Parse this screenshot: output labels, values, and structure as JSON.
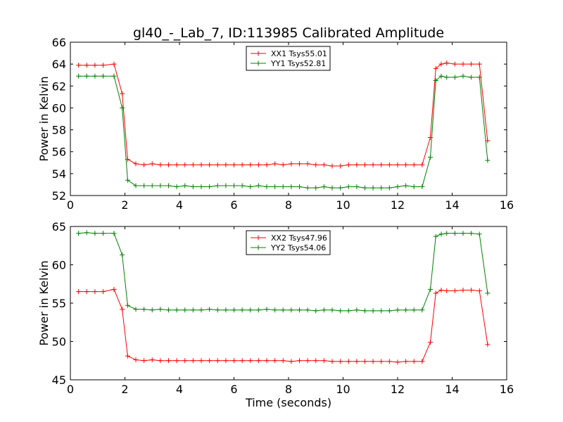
{
  "title": "gl40_-_Lab_7, ID:113985 Calibrated Amplitude",
  "colors": {
    "red": "#ff0000",
    "green": "#008000"
  },
  "chart_data": [
    {
      "type": "line",
      "xlabel": "",
      "ylabel": "Power in Kelvin",
      "xlim": [
        0,
        16
      ],
      "ylim": [
        52,
        66
      ],
      "xticks": [
        0,
        2,
        4,
        6,
        8,
        10,
        12,
        14,
        16
      ],
      "yticks": [
        52,
        54,
        56,
        58,
        60,
        62,
        64,
        66
      ],
      "legend_position": "top-center",
      "grid": false,
      "x": [
        0.3,
        0.6,
        0.9,
        1.2,
        1.6,
        1.9,
        2.1,
        2.4,
        2.7,
        3.0,
        3.3,
        3.6,
        3.9,
        4.2,
        4.5,
        4.8,
        5.1,
        5.4,
        5.7,
        6.0,
        6.3,
        6.6,
        6.9,
        7.2,
        7.5,
        7.8,
        8.1,
        8.4,
        8.7,
        9.0,
        9.3,
        9.6,
        9.9,
        10.2,
        10.5,
        10.8,
        11.1,
        11.4,
        11.7,
        12.0,
        12.3,
        12.6,
        12.9,
        13.2,
        13.4,
        13.6,
        13.8,
        14.1,
        14.4,
        14.7,
        15.0,
        15.3
      ],
      "series": [
        {
          "name": "XX1 Tsys55.01",
          "color": "#ff0000",
          "values": [
            63.9,
            63.9,
            63.9,
            63.9,
            64.0,
            61.3,
            55.3,
            54.9,
            54.8,
            54.9,
            54.8,
            54.8,
            54.8,
            54.8,
            54.8,
            54.8,
            54.8,
            54.8,
            54.8,
            54.8,
            54.8,
            54.8,
            54.8,
            54.8,
            54.9,
            54.8,
            54.9,
            54.9,
            54.9,
            54.8,
            54.8,
            54.7,
            54.7,
            54.8,
            54.8,
            54.8,
            54.8,
            54.8,
            54.8,
            54.8,
            54.8,
            54.8,
            54.8,
            57.3,
            63.6,
            64.0,
            64.1,
            64.0,
            64.0,
            64.0,
            64.0,
            57.0
          ]
        },
        {
          "name": "YY1 Tsys52.81",
          "color": "#008000",
          "values": [
            62.9,
            62.9,
            62.9,
            62.9,
            62.9,
            60.0,
            53.4,
            52.9,
            52.9,
            52.9,
            52.9,
            52.9,
            52.8,
            52.9,
            52.8,
            52.8,
            52.8,
            52.9,
            52.9,
            52.9,
            52.9,
            52.8,
            52.9,
            52.8,
            52.8,
            52.8,
            52.8,
            52.8,
            52.7,
            52.7,
            52.8,
            52.7,
            52.7,
            52.8,
            52.8,
            52.7,
            52.7,
            52.7,
            52.7,
            52.8,
            52.9,
            52.8,
            52.8,
            55.5,
            62.5,
            62.9,
            62.8,
            62.8,
            62.9,
            62.8,
            62.8,
            55.2
          ]
        }
      ]
    },
    {
      "type": "line",
      "xlabel": "Time (seconds)",
      "ylabel": "Power in Kelvin",
      "xlim": [
        0,
        16
      ],
      "ylim": [
        45,
        65
      ],
      "xticks": [
        0,
        2,
        4,
        6,
        8,
        10,
        12,
        14,
        16
      ],
      "yticks": [
        45,
        50,
        55,
        60,
        65
      ],
      "legend_position": "top-center",
      "grid": false,
      "x": [
        0.3,
        0.6,
        0.9,
        1.2,
        1.6,
        1.9,
        2.1,
        2.4,
        2.7,
        3.0,
        3.3,
        3.6,
        3.9,
        4.2,
        4.5,
        4.8,
        5.1,
        5.4,
        5.7,
        6.0,
        6.3,
        6.6,
        6.9,
        7.2,
        7.5,
        7.8,
        8.1,
        8.4,
        8.7,
        9.0,
        9.3,
        9.6,
        9.9,
        10.2,
        10.5,
        10.8,
        11.1,
        11.4,
        11.7,
        12.0,
        12.3,
        12.6,
        12.9,
        13.2,
        13.4,
        13.6,
        13.8,
        14.1,
        14.4,
        14.7,
        15.0,
        15.3
      ],
      "series": [
        {
          "name": "XX2 Tsys47.96",
          "color": "#ff0000",
          "values": [
            56.5,
            56.5,
            56.5,
            56.5,
            56.8,
            54.2,
            48.1,
            47.6,
            47.5,
            47.6,
            47.5,
            47.5,
            47.5,
            47.5,
            47.5,
            47.5,
            47.5,
            47.5,
            47.5,
            47.5,
            47.5,
            47.5,
            47.5,
            47.5,
            47.5,
            47.5,
            47.4,
            47.5,
            47.5,
            47.5,
            47.5,
            47.4,
            47.4,
            47.4,
            47.4,
            47.4,
            47.4,
            47.4,
            47.4,
            47.3,
            47.4,
            47.4,
            47.4,
            49.9,
            56.3,
            56.7,
            56.6,
            56.6,
            56.7,
            56.7,
            56.6,
            49.6
          ]
        },
        {
          "name": "YY2 Tsys54.06",
          "color": "#008000",
          "values": [
            64.1,
            64.2,
            64.1,
            64.1,
            64.1,
            61.3,
            54.7,
            54.2,
            54.2,
            54.1,
            54.2,
            54.1,
            54.1,
            54.1,
            54.1,
            54.1,
            54.2,
            54.1,
            54.1,
            54.1,
            54.1,
            54.1,
            54.1,
            54.2,
            54.1,
            54.1,
            54.1,
            54.1,
            54.1,
            54.0,
            54.1,
            54.1,
            54.0,
            54.0,
            54.1,
            54.0,
            54.0,
            54.0,
            54.0,
            54.1,
            54.1,
            54.1,
            54.1,
            56.8,
            63.7,
            64.0,
            64.1,
            64.1,
            64.1,
            64.1,
            64.0,
            56.3
          ]
        }
      ]
    }
  ]
}
